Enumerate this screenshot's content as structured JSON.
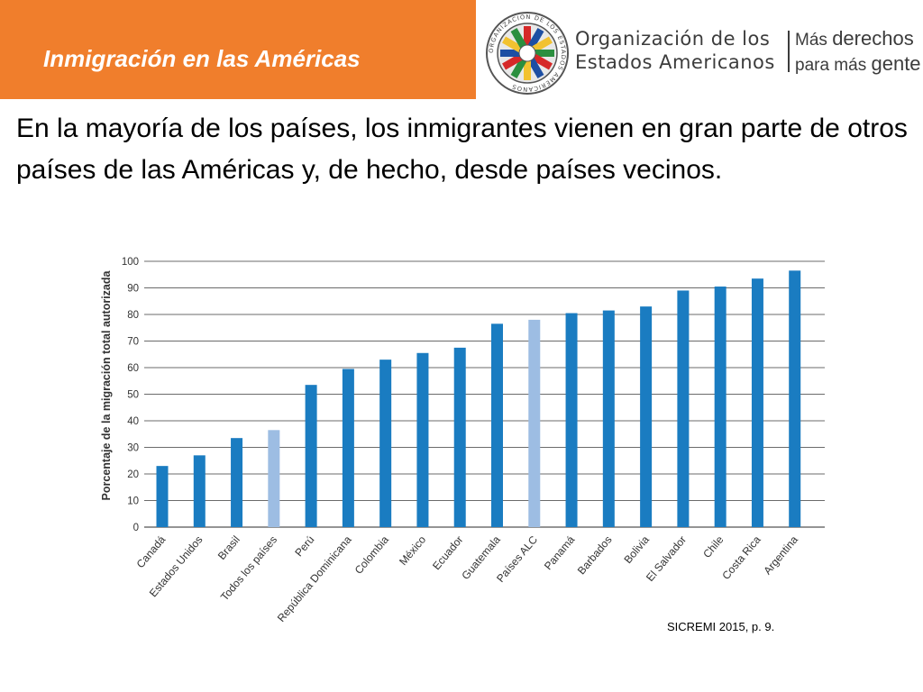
{
  "header": {
    "title": "Inmigración en las Américas",
    "org_line1": "Organización de los",
    "org_line2": "Estados Americanos",
    "slogan_line1_a": "Más",
    "slogan_line1_b": "derechos",
    "slogan_line2_a": "para más",
    "slogan_line2_b": "gente",
    "seal_text": "ORGANIZACION DE LOS ESTADOS AMERICANOS"
  },
  "heading": "En la mayoría de los países, los inmigrantes vienen en gran parte de otros países de las Américas y, de hecho, desde países vecinos.",
  "source": "SICREMI 2015, p. 9.",
  "colors": {
    "header_bg": "#f07e2c",
    "bar": "#1a7cc1",
    "bar_highlight": "#9dbde3"
  },
  "chart_data": {
    "type": "bar",
    "ylabel": "Porcentaje de la migración total autorizada",
    "ylim": [
      0,
      100
    ],
    "yticks": [
      0,
      10,
      20,
      30,
      40,
      50,
      60,
      70,
      80,
      90,
      100
    ],
    "grid": true,
    "categories": [
      "Canadá",
      "Estados Unidos",
      "Brasil",
      "Todos los países",
      "Perú",
      "República Dominicana",
      "Colombia",
      "México",
      "Ecuador",
      "Guatemala",
      "Países ALC",
      "Panamá",
      "Barbados",
      "Bolivia",
      "El Salvador",
      "Chile",
      "Costa Rica",
      "Argentina"
    ],
    "values": [
      23,
      27,
      33.5,
      36.5,
      53.5,
      59.5,
      63,
      65.5,
      67.5,
      76.5,
      78,
      80.5,
      81.5,
      83,
      89,
      90.5,
      93.5,
      96.5
    ],
    "highlighted": [
      "Todos los países",
      "Países ALC"
    ]
  }
}
